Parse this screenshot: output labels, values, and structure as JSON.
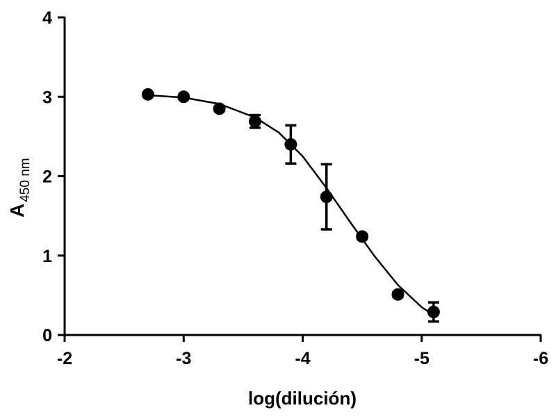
{
  "chart_data": {
    "type": "scatter",
    "xlabel": "log(dilución)",
    "ylabel": "A",
    "ylabel_subscript": "450 nm",
    "xlim": [
      -2,
      -6
    ],
    "xticks": [
      -2,
      -3,
      -4,
      -5,
      -6
    ],
    "ylim": [
      0,
      4
    ],
    "yticks": [
      0,
      1,
      2,
      3,
      4
    ],
    "grid": false,
    "series": [
      {
        "x": [
          -2.7,
          -3.0,
          -3.3,
          -3.6,
          -3.9,
          -4.2,
          -4.5,
          -4.8,
          -5.1
        ],
        "values": [
          3.03,
          3.0,
          2.85,
          2.69,
          2.4,
          1.74,
          1.24,
          0.51,
          0.29
        ],
        "errors": [
          0.02,
          0.02,
          0.03,
          0.08,
          0.24,
          0.41,
          0.03,
          0.03,
          0.12
        ],
        "color": "#000000"
      }
    ],
    "fit": {
      "x": [
        -2.7,
        -3.0,
        -3.3,
        -3.6,
        -3.8,
        -4.0,
        -4.2,
        -4.4,
        -4.6,
        -4.8,
        -5.0,
        -5.1
      ],
      "values": [
        3.02,
        2.99,
        2.91,
        2.74,
        2.55,
        2.25,
        1.85,
        1.42,
        1.0,
        0.63,
        0.35,
        0.25
      ],
      "color": "#000000"
    }
  }
}
